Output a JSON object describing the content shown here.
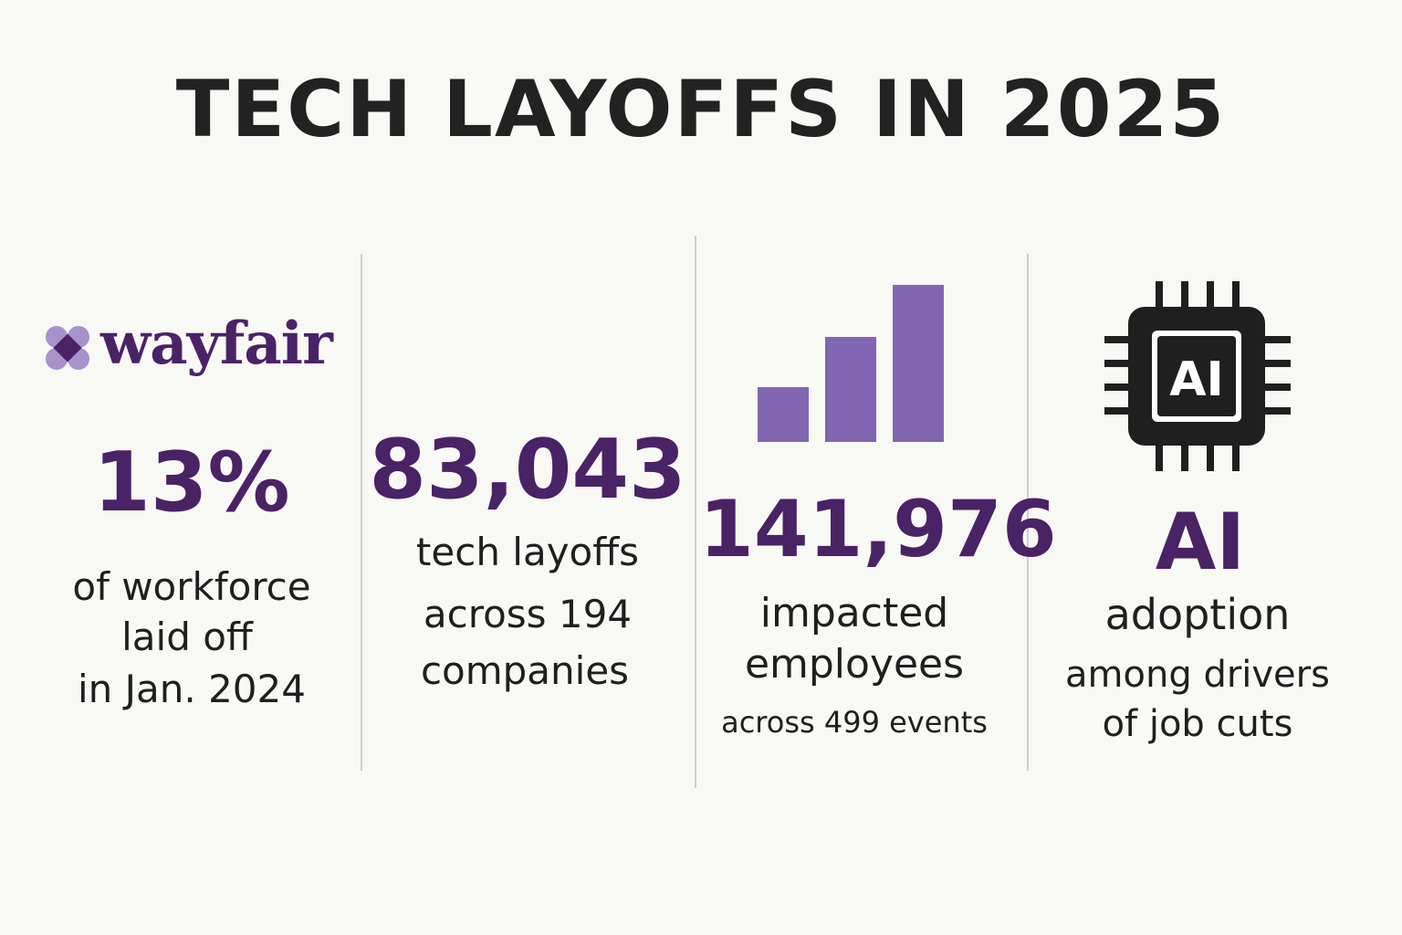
{
  "title": "TECH LAYOFFS IN 2025",
  "colors": {
    "accent": "#4a2266",
    "bar": "#8166b3",
    "background": "#f8f8f5"
  },
  "col1": {
    "logo_text": "wayfair",
    "stat": "13%",
    "lines": [
      "of workforce",
      "laid off",
      "in Jan. 2024"
    ]
  },
  "col2": {
    "stat": "83,043",
    "lines": [
      "tech layoffs",
      "across 194",
      "companies"
    ]
  },
  "col3": {
    "bars": [
      0.35,
      0.67,
      1.0
    ],
    "stat": "141,976",
    "lines": [
      "impacted",
      "employees"
    ],
    "subline": "across 499 events"
  },
  "col4": {
    "chip_label": "AI",
    "stat": "AI",
    "lines": [
      "adoption",
      "among drivers",
      "of job cuts"
    ]
  }
}
